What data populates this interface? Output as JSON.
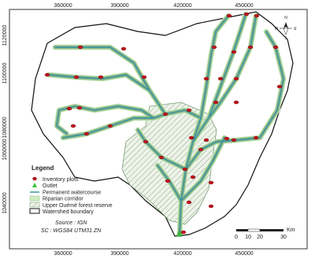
{
  "map": {
    "x_ticks": [
      360000,
      390000,
      420000,
      450000
    ],
    "y_ticks": [
      1120000,
      1100000,
      1080000,
      1060000,
      1040000
    ],
    "legend": {
      "title": "Legend",
      "items": [
        "Inventory plots",
        "Outlet",
        "Permanent watercourse",
        "Riparian corridor",
        "Upper Ouémé forest reserve",
        "Watershed boundary"
      ]
    },
    "source": "Source : IGN",
    "projection": "SC : WGS84 UTM31 ZN",
    "scale": {
      "labels": [
        0,
        10,
        20,
        30
      ],
      "unit": "Km"
    },
    "compass": {
      "n": "N",
      "s": "S",
      "e": "E",
      "w": "W"
    }
  }
}
